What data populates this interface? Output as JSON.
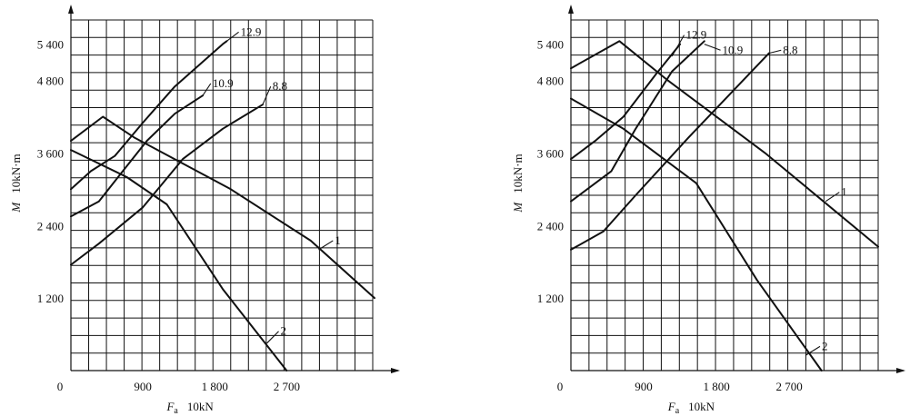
{
  "chart_data": [
    {
      "type": "line",
      "ylabel_symbol": "M",
      "ylabel_unit": "10kN·m",
      "xlabel_symbol": "F",
      "xlabel_sub": "a",
      "xlabel_unit": "10kN",
      "origin_label": "0",
      "x_ticks": [
        "900",
        "1 800",
        "2 700"
      ],
      "x_tick_values": [
        900,
        1800,
        2700
      ],
      "y_ticks": [
        "1 200",
        "2 400",
        "3 600",
        "4 800",
        "5 400"
      ],
      "y_tick_values": [
        1200,
        2400,
        3600,
        4800,
        5400
      ],
      "xlim": [
        0,
        3800
      ],
      "ylim": [
        0,
        5800
      ],
      "grid": true,
      "series": [
        {
          "name": "12.9",
          "points": [
            [
              0,
              3000
            ],
            [
              250,
              3300
            ],
            [
              550,
              3550
            ],
            [
              900,
              4100
            ],
            [
              1300,
              4700
            ],
            [
              1900,
              5400
            ],
            [
              1950,
              5450
            ]
          ]
        },
        {
          "name": "10.9",
          "points": [
            [
              0,
              2550
            ],
            [
              350,
              2800
            ],
            [
              650,
              3300
            ],
            [
              950,
              3800
            ],
            [
              1300,
              4250
            ],
            [
              1650,
              4550
            ]
          ]
        },
        {
          "name": "8.8",
          "points": [
            [
              0,
              1750
            ],
            [
              350,
              2100
            ],
            [
              900,
              2700
            ],
            [
              1400,
              3500
            ],
            [
              1900,
              4000
            ],
            [
              2400,
              4400
            ]
          ]
        },
        {
          "name": "1",
          "points": [
            [
              0,
              3800
            ],
            [
              400,
              4200
            ],
            [
              800,
              3850
            ],
            [
              2000,
              3000
            ],
            [
              3000,
              2150
            ],
            [
              3800,
              1200
            ]
          ]
        },
        {
          "name": "2",
          "points": [
            [
              0,
              3650
            ],
            [
              700,
              3200
            ],
            [
              1200,
              2750
            ],
            [
              1900,
              1350
            ],
            [
              2700,
              0
            ]
          ]
        }
      ],
      "annotations": [
        {
          "text": "12.9",
          "x": 1950,
          "y": 5450,
          "lx": 2100,
          "ly": 5600
        },
        {
          "text": "10.9",
          "x": 1650,
          "y": 4550,
          "lx": 1750,
          "ly": 4750
        },
        {
          "text": "8.8",
          "x": 2400,
          "y": 4400,
          "lx": 2500,
          "ly": 4700
        },
        {
          "text": "1",
          "x": 3100,
          "y": 2000,
          "lx": 3280,
          "ly": 2150
        },
        {
          "text": "2",
          "x": 2450,
          "y": 450,
          "lx": 2600,
          "ly": 650
        }
      ]
    },
    {
      "type": "line",
      "ylabel_symbol": "M",
      "ylabel_unit": "10kN·m",
      "xlabel_symbol": "F",
      "xlabel_sub": "a",
      "xlabel_unit": "10kN",
      "origin_label": "0",
      "x_ticks": [
        "900",
        "1 800",
        "2 700"
      ],
      "x_tick_values": [
        900,
        1800,
        2700
      ],
      "y_ticks": [
        "1 200",
        "2 400",
        "3 600",
        "4 800",
        "5 400"
      ],
      "y_tick_values": [
        1200,
        2400,
        3600,
        4800,
        5400
      ],
      "xlim": [
        0,
        3800
      ],
      "ylim": [
        0,
        5800
      ],
      "grid": true,
      "series": [
        {
          "name": "12.9",
          "points": [
            [
              0,
              3500
            ],
            [
              300,
              3800
            ],
            [
              650,
              4200
            ],
            [
              1050,
              4900
            ],
            [
              1350,
              5400
            ]
          ]
        },
        {
          "name": "10.9",
          "points": [
            [
              0,
              2800
            ],
            [
              500,
              3300
            ],
            [
              800,
              4000
            ],
            [
              1250,
              4950
            ],
            [
              1650,
              5450
            ]
          ]
        },
        {
          "name": "8.8",
          "points": [
            [
              0,
              2000
            ],
            [
              400,
              2300
            ],
            [
              800,
              2900
            ],
            [
              1450,
              3850
            ],
            [
              2450,
              5250
            ]
          ]
        },
        {
          "name": "1",
          "points": [
            [
              0,
              5000
            ],
            [
              600,
              5450
            ],
            [
              1200,
              4800
            ],
            [
              2400,
              3600
            ],
            [
              3800,
              2050
            ]
          ]
        },
        {
          "name": "2",
          "points": [
            [
              0,
              4500
            ],
            [
              650,
              4000
            ],
            [
              1550,
              3100
            ],
            [
              2300,
              1500
            ],
            [
              3100,
              0
            ]
          ]
        }
      ],
      "annotations": [
        {
          "text": "12.9",
          "x": 1250,
          "y": 5200,
          "lx": 1400,
          "ly": 5550
        },
        {
          "text": "10.9",
          "x": 1650,
          "y": 5400,
          "lx": 1850,
          "ly": 5300
        },
        {
          "text": "8.8",
          "x": 2450,
          "y": 5250,
          "lx": 2600,
          "ly": 5300
        },
        {
          "text": "1",
          "x": 3150,
          "y": 2800,
          "lx": 3320,
          "ly": 2950
        },
        {
          "text": "2",
          "x": 2900,
          "y": 250,
          "lx": 3080,
          "ly": 400
        }
      ]
    }
  ]
}
